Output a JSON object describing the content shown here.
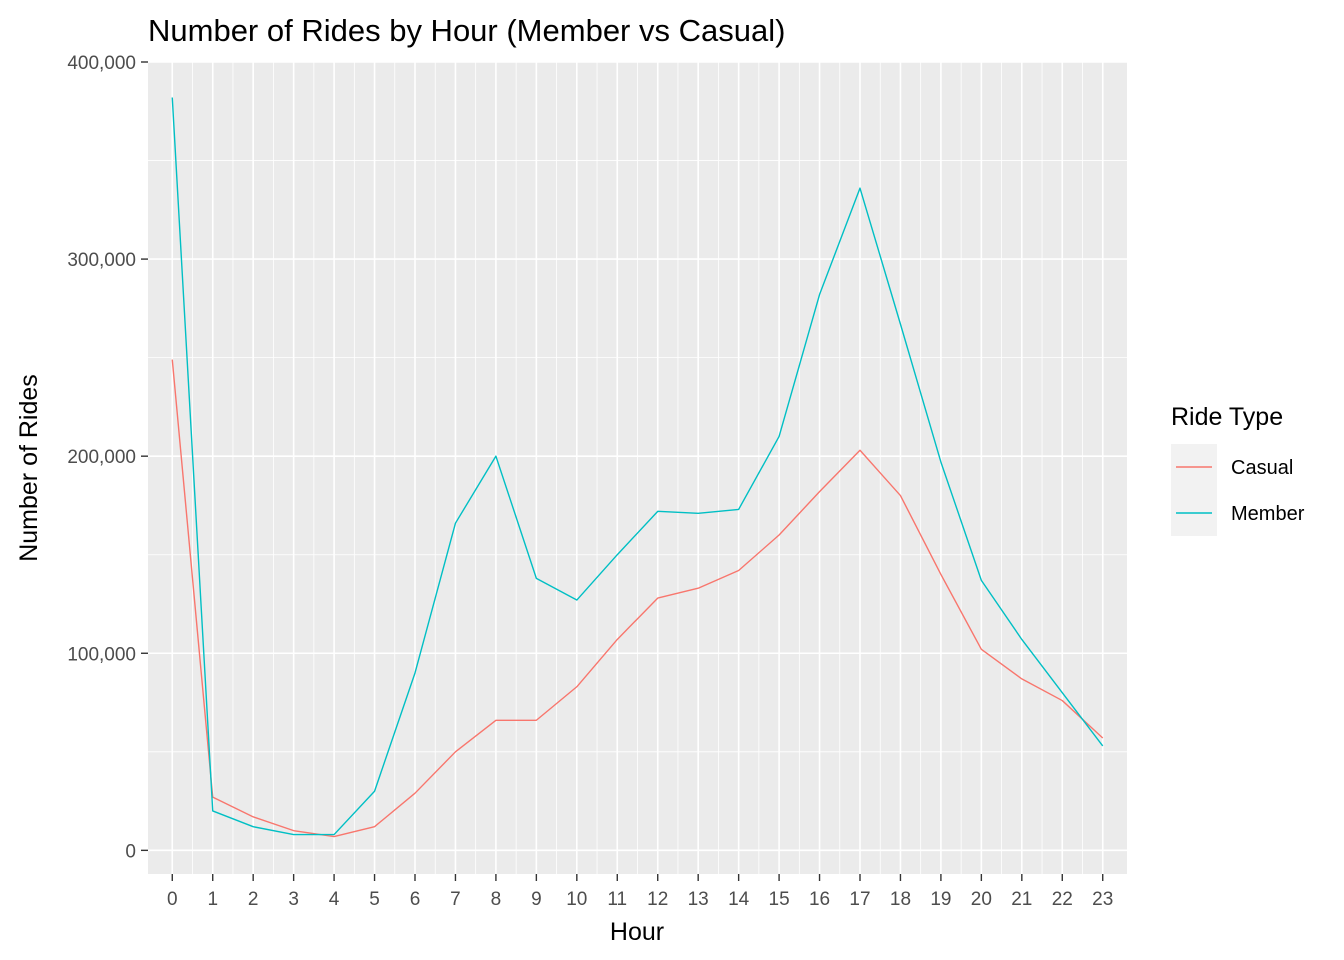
{
  "chart_data": {
    "type": "line",
    "title": "Number of Rides by Hour (Member vs Casual)",
    "xlabel": "Hour",
    "ylabel": "Number of Rides",
    "x": [
      0,
      1,
      2,
      3,
      4,
      5,
      6,
      7,
      8,
      9,
      10,
      11,
      12,
      13,
      14,
      15,
      16,
      17,
      18,
      19,
      20,
      21,
      22,
      23
    ],
    "x_tick_labels": [
      "0",
      "1",
      "2",
      "3",
      "4",
      "5",
      "6",
      "7",
      "8",
      "9",
      "10",
      "11",
      "12",
      "13",
      "14",
      "15",
      "16",
      "17",
      "18",
      "19",
      "20",
      "21",
      "22",
      "23"
    ],
    "y_ticks": [
      0,
      100000,
      200000,
      300000,
      400000
    ],
    "y_tick_labels": [
      "0",
      "100,000",
      "200,000",
      "300,000",
      "400,000"
    ],
    "xlim": [
      -0.6,
      23.6
    ],
    "ylim": [
      -12000,
      400000
    ],
    "grid": true,
    "legend": {
      "title": "Ride Type",
      "position": "right"
    },
    "series": [
      {
        "name": "Casual",
        "color": "#F8766D",
        "values": [
          249000,
          27000,
          17000,
          10000,
          7000,
          12000,
          29000,
          50000,
          66000,
          66000,
          83000,
          107000,
          128000,
          133000,
          142000,
          160000,
          182000,
          203000,
          180000,
          140000,
          102000,
          87000,
          76000,
          57000
        ]
      },
      {
        "name": "Member",
        "color": "#00BFC4",
        "values": [
          382000,
          20000,
          12000,
          8000,
          8000,
          30000,
          90000,
          166000,
          200000,
          138000,
          127000,
          150000,
          172000,
          171000,
          173000,
          210000,
          282000,
          336000,
          267000,
          197000,
          137000,
          107000,
          80000,
          53000
        ]
      }
    ]
  }
}
